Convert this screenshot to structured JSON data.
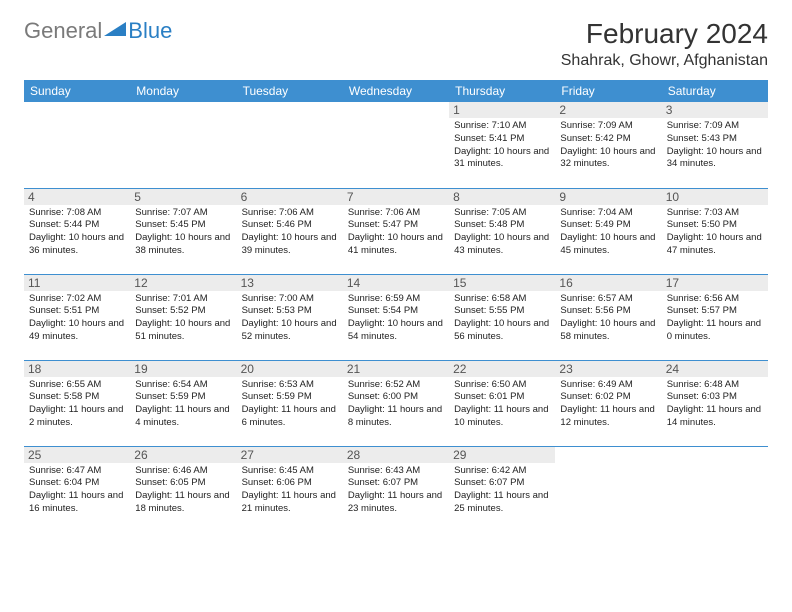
{
  "brand": {
    "part1": "General",
    "part2": "Blue"
  },
  "title": "February 2024",
  "location": "Shahrak, Ghowr, Afghanistan",
  "colors": {
    "header_bg": "#3e8fd0",
    "header_text": "#ffffff",
    "daynum_bg": "#ececec",
    "row_border": "#3e8fd0",
    "brand_blue": "#2a7fc4",
    "brand_gray": "#7a7a7a"
  },
  "weekdays": [
    "Sunday",
    "Monday",
    "Tuesday",
    "Wednesday",
    "Thursday",
    "Friday",
    "Saturday"
  ],
  "weeks": [
    [
      null,
      null,
      null,
      null,
      {
        "n": "1",
        "sunrise": "Sunrise: 7:10 AM",
        "sunset": "Sunset: 5:41 PM",
        "daylight": "Daylight: 10 hours and 31 minutes."
      },
      {
        "n": "2",
        "sunrise": "Sunrise: 7:09 AM",
        "sunset": "Sunset: 5:42 PM",
        "daylight": "Daylight: 10 hours and 32 minutes."
      },
      {
        "n": "3",
        "sunrise": "Sunrise: 7:09 AM",
        "sunset": "Sunset: 5:43 PM",
        "daylight": "Daylight: 10 hours and 34 minutes."
      }
    ],
    [
      {
        "n": "4",
        "sunrise": "Sunrise: 7:08 AM",
        "sunset": "Sunset: 5:44 PM",
        "daylight": "Daylight: 10 hours and 36 minutes."
      },
      {
        "n": "5",
        "sunrise": "Sunrise: 7:07 AM",
        "sunset": "Sunset: 5:45 PM",
        "daylight": "Daylight: 10 hours and 38 minutes."
      },
      {
        "n": "6",
        "sunrise": "Sunrise: 7:06 AM",
        "sunset": "Sunset: 5:46 PM",
        "daylight": "Daylight: 10 hours and 39 minutes."
      },
      {
        "n": "7",
        "sunrise": "Sunrise: 7:06 AM",
        "sunset": "Sunset: 5:47 PM",
        "daylight": "Daylight: 10 hours and 41 minutes."
      },
      {
        "n": "8",
        "sunrise": "Sunrise: 7:05 AM",
        "sunset": "Sunset: 5:48 PM",
        "daylight": "Daylight: 10 hours and 43 minutes."
      },
      {
        "n": "9",
        "sunrise": "Sunrise: 7:04 AM",
        "sunset": "Sunset: 5:49 PM",
        "daylight": "Daylight: 10 hours and 45 minutes."
      },
      {
        "n": "10",
        "sunrise": "Sunrise: 7:03 AM",
        "sunset": "Sunset: 5:50 PM",
        "daylight": "Daylight: 10 hours and 47 minutes."
      }
    ],
    [
      {
        "n": "11",
        "sunrise": "Sunrise: 7:02 AM",
        "sunset": "Sunset: 5:51 PM",
        "daylight": "Daylight: 10 hours and 49 minutes."
      },
      {
        "n": "12",
        "sunrise": "Sunrise: 7:01 AM",
        "sunset": "Sunset: 5:52 PM",
        "daylight": "Daylight: 10 hours and 51 minutes."
      },
      {
        "n": "13",
        "sunrise": "Sunrise: 7:00 AM",
        "sunset": "Sunset: 5:53 PM",
        "daylight": "Daylight: 10 hours and 52 minutes."
      },
      {
        "n": "14",
        "sunrise": "Sunrise: 6:59 AM",
        "sunset": "Sunset: 5:54 PM",
        "daylight": "Daylight: 10 hours and 54 minutes."
      },
      {
        "n": "15",
        "sunrise": "Sunrise: 6:58 AM",
        "sunset": "Sunset: 5:55 PM",
        "daylight": "Daylight: 10 hours and 56 minutes."
      },
      {
        "n": "16",
        "sunrise": "Sunrise: 6:57 AM",
        "sunset": "Sunset: 5:56 PM",
        "daylight": "Daylight: 10 hours and 58 minutes."
      },
      {
        "n": "17",
        "sunrise": "Sunrise: 6:56 AM",
        "sunset": "Sunset: 5:57 PM",
        "daylight": "Daylight: 11 hours and 0 minutes."
      }
    ],
    [
      {
        "n": "18",
        "sunrise": "Sunrise: 6:55 AM",
        "sunset": "Sunset: 5:58 PM",
        "daylight": "Daylight: 11 hours and 2 minutes."
      },
      {
        "n": "19",
        "sunrise": "Sunrise: 6:54 AM",
        "sunset": "Sunset: 5:59 PM",
        "daylight": "Daylight: 11 hours and 4 minutes."
      },
      {
        "n": "20",
        "sunrise": "Sunrise: 6:53 AM",
        "sunset": "Sunset: 5:59 PM",
        "daylight": "Daylight: 11 hours and 6 minutes."
      },
      {
        "n": "21",
        "sunrise": "Sunrise: 6:52 AM",
        "sunset": "Sunset: 6:00 PM",
        "daylight": "Daylight: 11 hours and 8 minutes."
      },
      {
        "n": "22",
        "sunrise": "Sunrise: 6:50 AM",
        "sunset": "Sunset: 6:01 PM",
        "daylight": "Daylight: 11 hours and 10 minutes."
      },
      {
        "n": "23",
        "sunrise": "Sunrise: 6:49 AM",
        "sunset": "Sunset: 6:02 PM",
        "daylight": "Daylight: 11 hours and 12 minutes."
      },
      {
        "n": "24",
        "sunrise": "Sunrise: 6:48 AM",
        "sunset": "Sunset: 6:03 PM",
        "daylight": "Daylight: 11 hours and 14 minutes."
      }
    ],
    [
      {
        "n": "25",
        "sunrise": "Sunrise: 6:47 AM",
        "sunset": "Sunset: 6:04 PM",
        "daylight": "Daylight: 11 hours and 16 minutes."
      },
      {
        "n": "26",
        "sunrise": "Sunrise: 6:46 AM",
        "sunset": "Sunset: 6:05 PM",
        "daylight": "Daylight: 11 hours and 18 minutes."
      },
      {
        "n": "27",
        "sunrise": "Sunrise: 6:45 AM",
        "sunset": "Sunset: 6:06 PM",
        "daylight": "Daylight: 11 hours and 21 minutes."
      },
      {
        "n": "28",
        "sunrise": "Sunrise: 6:43 AM",
        "sunset": "Sunset: 6:07 PM",
        "daylight": "Daylight: 11 hours and 23 minutes."
      },
      {
        "n": "29",
        "sunrise": "Sunrise: 6:42 AM",
        "sunset": "Sunset: 6:07 PM",
        "daylight": "Daylight: 11 hours and 25 minutes."
      },
      null,
      null
    ]
  ]
}
